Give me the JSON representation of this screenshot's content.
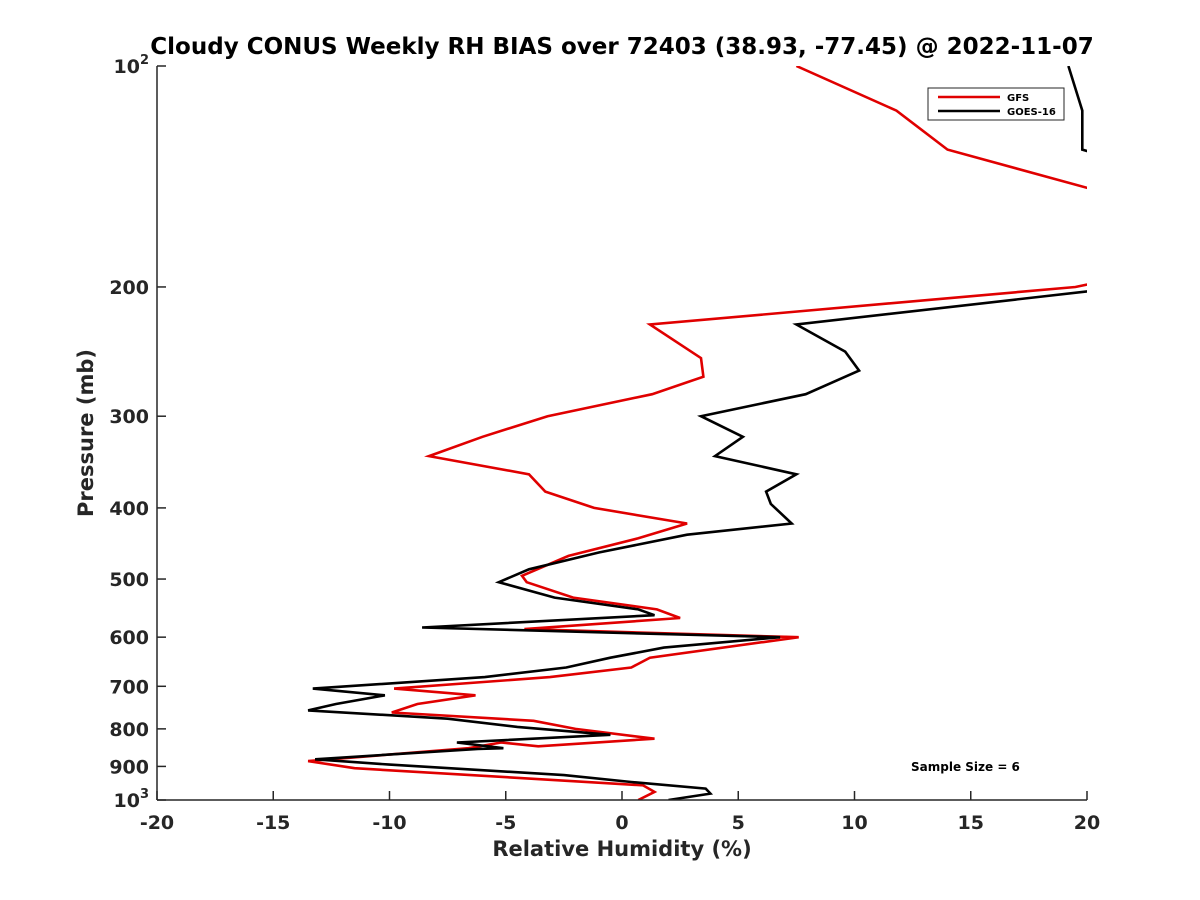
{
  "chart_data": {
    "type": "line",
    "title": "Cloudy CONUS Weekly RH BIAS over 72403 (38.93, -77.45) @ 2022-11-07",
    "xlabel": "Relative Humidity (%)",
    "ylabel": "Pressure (mb)",
    "xlim": [
      -20,
      20
    ],
    "ylim": [
      100,
      1000
    ],
    "y_scale": "log",
    "y_reversed": true,
    "x_ticks": [
      "-20",
      "-15",
      "-10",
      "-5",
      "0",
      "5",
      "10",
      "15",
      "20"
    ],
    "y_ticks": [
      {
        "value": 100,
        "base": "10",
        "exp": "2"
      },
      {
        "value": 200,
        "label": "200"
      },
      {
        "value": 300,
        "label": "300"
      },
      {
        "value": 400,
        "label": "400"
      },
      {
        "value": 500,
        "label": "500"
      },
      {
        "value": 600,
        "label": "600"
      },
      {
        "value": 700,
        "label": "700"
      },
      {
        "value": 800,
        "label": "800"
      },
      {
        "value": 900,
        "label": "900"
      },
      {
        "value": 1000,
        "base": "10",
        "exp": "3"
      }
    ],
    "grid": false,
    "legend_position": "top-right",
    "annotation": "Sample Size = 6",
    "series": [
      {
        "name": "GFS",
        "color": "#e00000",
        "points": [
          [
            7.5,
            100
          ],
          [
            11.8,
            115
          ],
          [
            14.0,
            130
          ],
          [
            20.5,
            148
          ],
          [
            20.5,
            197
          ],
          [
            19.5,
            200
          ],
          [
            1.2,
            225
          ],
          [
            3.4,
            250
          ],
          [
            3.5,
            265
          ],
          [
            1.3,
            280
          ],
          [
            -3.2,
            300
          ],
          [
            -6.0,
            320
          ],
          [
            -8.3,
            340
          ],
          [
            -4.0,
            360
          ],
          [
            -3.3,
            380
          ],
          [
            -1.2,
            400
          ],
          [
            2.8,
            420
          ],
          [
            0.7,
            440
          ],
          [
            -2.3,
            465
          ],
          [
            -4.3,
            495
          ],
          [
            -4.1,
            505
          ],
          [
            -2.1,
            530
          ],
          [
            1.5,
            550
          ],
          [
            2.5,
            565
          ],
          [
            -4.2,
            585
          ],
          [
            7.6,
            600
          ],
          [
            1.2,
            640
          ],
          [
            0.4,
            660
          ],
          [
            -3.1,
            680
          ],
          [
            -9.8,
            705
          ],
          [
            -6.3,
            720
          ],
          [
            -8.8,
            740
          ],
          [
            -9.9,
            760
          ],
          [
            -3.8,
            780
          ],
          [
            -2.0,
            800
          ],
          [
            1.4,
            825
          ],
          [
            -3.6,
            845
          ],
          [
            -5.2,
            835
          ],
          [
            -6.6,
            850
          ],
          [
            -13.5,
            885
          ],
          [
            -11.5,
            905
          ],
          [
            0.9,
            955
          ],
          [
            1.4,
            975
          ],
          [
            0.7,
            1000
          ]
        ]
      },
      {
        "name": "GOES-16",
        "color": "#000000",
        "points": [
          [
            19.2,
            100
          ],
          [
            19.8,
            115
          ],
          [
            19.8,
            130
          ],
          [
            20.5,
            132
          ],
          [
            20.5,
            202
          ],
          [
            7.5,
            225
          ],
          [
            9.6,
            245
          ],
          [
            10.2,
            260
          ],
          [
            7.9,
            280
          ],
          [
            3.4,
            300
          ],
          [
            5.2,
            320
          ],
          [
            4.0,
            340
          ],
          [
            7.5,
            360
          ],
          [
            6.2,
            380
          ],
          [
            6.4,
            395
          ],
          [
            7.3,
            420
          ],
          [
            2.8,
            435
          ],
          [
            -1.0,
            460
          ],
          [
            -4.0,
            485
          ],
          [
            -5.3,
            505
          ],
          [
            -2.9,
            530
          ],
          [
            0.7,
            550
          ],
          [
            1.4,
            560
          ],
          [
            -8.6,
            582
          ],
          [
            6.8,
            600
          ],
          [
            1.8,
            620
          ],
          [
            -0.5,
            640
          ],
          [
            -2.4,
            660
          ],
          [
            -5.9,
            680
          ],
          [
            -13.3,
            705
          ],
          [
            -10.2,
            720
          ],
          [
            -12.3,
            740
          ],
          [
            -13.5,
            755
          ],
          [
            -7.5,
            775
          ],
          [
            -4.5,
            795
          ],
          [
            -0.5,
            815
          ],
          [
            -7.1,
            835
          ],
          [
            -5.1,
            850
          ],
          [
            -6.2,
            852
          ],
          [
            -13.2,
            880
          ],
          [
            -10.0,
            895
          ],
          [
            -2.5,
            925
          ],
          [
            0.4,
            945
          ],
          [
            3.6,
            965
          ],
          [
            3.8,
            980
          ],
          [
            2.0,
            1000
          ]
        ]
      }
    ]
  }
}
